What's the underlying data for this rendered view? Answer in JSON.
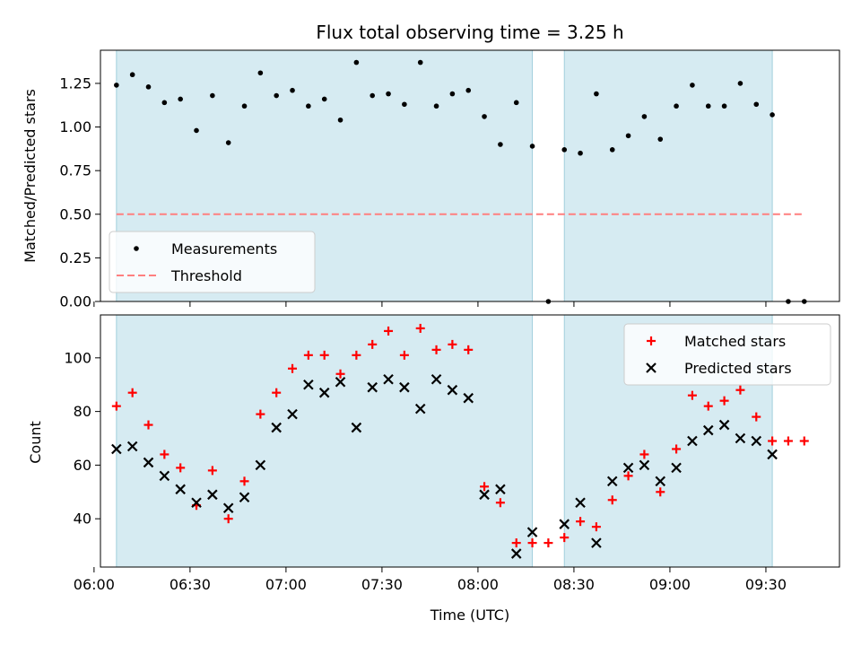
{
  "figure": {
    "title": "Flux total observing time = 3.25 h",
    "xlabel": "Time (UTC)"
  },
  "chart_data": [
    {
      "type": "scatter",
      "panel": "top",
      "ylabel": "Matched/Predicted stars",
      "xlim": [
        "06:02",
        "09:53"
      ],
      "ylim": [
        0,
        1.44
      ],
      "yticks": [
        "0.00",
        "0.25",
        "0.50",
        "0.75",
        "1.00",
        "1.25"
      ],
      "shaded_intervals": [
        [
          "06:07",
          "08:17"
        ],
        [
          "08:27",
          "09:32"
        ]
      ],
      "shade_color": "#add8e6",
      "legend": {
        "position": "lower-left",
        "entries": [
          "Measurements",
          "Threshold"
        ]
      },
      "series": [
        {
          "name": "Measurements",
          "marker": "dot",
          "color": "#000000",
          "x": [
            "06:07",
            "06:12",
            "06:17",
            "06:22",
            "06:27",
            "06:32",
            "06:37",
            "06:42",
            "06:47",
            "06:52",
            "06:57",
            "07:02",
            "07:07",
            "07:12",
            "07:17",
            "07:22",
            "07:27",
            "07:32",
            "07:37",
            "07:42",
            "07:47",
            "07:52",
            "07:57",
            "08:02",
            "08:07",
            "08:12",
            "08:17",
            "08:22",
            "08:27",
            "08:32",
            "08:37",
            "08:42",
            "08:47",
            "08:52",
            "08:57",
            "09:02",
            "09:07",
            "09:12",
            "09:17",
            "09:22",
            "09:27",
            "09:32",
            "09:37",
            "09:42"
          ],
          "y": [
            1.24,
            1.3,
            1.23,
            1.14,
            1.16,
            0.98,
            1.18,
            0.91,
            1.12,
            1.31,
            1.18,
            1.21,
            1.12,
            1.16,
            1.04,
            1.37,
            1.18,
            1.19,
            1.13,
            1.37,
            1.12,
            1.19,
            1.21,
            1.06,
            0.9,
            1.14,
            0.89,
            0.0,
            0.87,
            0.85,
            1.19,
            0.87,
            0.95,
            1.06,
            0.93,
            1.12,
            1.24,
            1.12,
            1.12,
            1.25,
            1.13,
            1.07,
            0.0,
            0.0
          ]
        },
        {
          "name": "Threshold",
          "marker": "dashed-line",
          "color": "#ff7f7f",
          "x": [
            "06:07",
            "09:42"
          ],
          "y": [
            0.5,
            0.5
          ]
        }
      ]
    },
    {
      "type": "scatter",
      "panel": "bottom",
      "ylabel": "Count",
      "xlim": [
        "06:02",
        "09:53"
      ],
      "ylim": [
        22,
        116
      ],
      "yticks": [
        "40",
        "60",
        "80",
        "100"
      ],
      "xticks": [
        "06:00",
        "06:30",
        "07:00",
        "07:30",
        "08:00",
        "08:30",
        "09:00",
        "09:30"
      ],
      "shaded_intervals": [
        [
          "06:07",
          "08:17"
        ],
        [
          "08:27",
          "09:32"
        ]
      ],
      "shade_color": "#add8e6",
      "legend": {
        "position": "top-right",
        "entries": [
          "Matched stars",
          "Predicted stars"
        ]
      },
      "series": [
        {
          "name": "Matched stars",
          "marker": "plus",
          "color": "#ff0000",
          "x": [
            "06:07",
            "06:12",
            "06:17",
            "06:22",
            "06:27",
            "06:32",
            "06:37",
            "06:42",
            "06:47",
            "06:52",
            "06:57",
            "07:02",
            "07:07",
            "07:12",
            "07:17",
            "07:22",
            "07:27",
            "07:32",
            "07:37",
            "07:42",
            "07:47",
            "07:52",
            "07:57",
            "08:02",
            "08:07",
            "08:12",
            "08:17",
            "08:22",
            "08:27",
            "08:32",
            "08:37",
            "08:42",
            "08:47",
            "08:52",
            "08:57",
            "09:02",
            "09:07",
            "09:12",
            "09:17",
            "09:22",
            "09:27",
            "09:32",
            "09:37",
            "09:42"
          ],
          "y": [
            82,
            87,
            75,
            64,
            59,
            45,
            58,
            40,
            54,
            79,
            87,
            96,
            101,
            101,
            94,
            101,
            105,
            110,
            101,
            111,
            103,
            105,
            103,
            52,
            46,
            31,
            31,
            31,
            33,
            39,
            37,
            47,
            56,
            64,
            50,
            66,
            86,
            82,
            84,
            88,
            78,
            69,
            69,
            69
          ]
        },
        {
          "name": "Predicted stars",
          "marker": "x",
          "color": "#000000",
          "x": [
            "06:07",
            "06:12",
            "06:17",
            "06:22",
            "06:27",
            "06:32",
            "06:37",
            "06:42",
            "06:47",
            "06:52",
            "06:57",
            "07:02",
            "07:07",
            "07:12",
            "07:17",
            "07:22",
            "07:27",
            "07:32",
            "07:37",
            "07:42",
            "07:47",
            "07:52",
            "07:57",
            "08:02",
            "08:07",
            "08:12",
            "08:17",
            "08:27",
            "08:32",
            "08:37",
            "08:42",
            "08:47",
            "08:52",
            "08:57",
            "09:02",
            "09:07",
            "09:12",
            "09:17",
            "09:22",
            "09:27",
            "09:32"
          ],
          "y": [
            66,
            67,
            61,
            56,
            51,
            46,
            49,
            44,
            48,
            60,
            74,
            79,
            90,
            87,
            91,
            74,
            89,
            92,
            89,
            81,
            92,
            88,
            85,
            49,
            51,
            27,
            35,
            38,
            46,
            31,
            54,
            59,
            60,
            54,
            59,
            69,
            73,
            75,
            70,
            69,
            64
          ]
        }
      ]
    }
  ]
}
